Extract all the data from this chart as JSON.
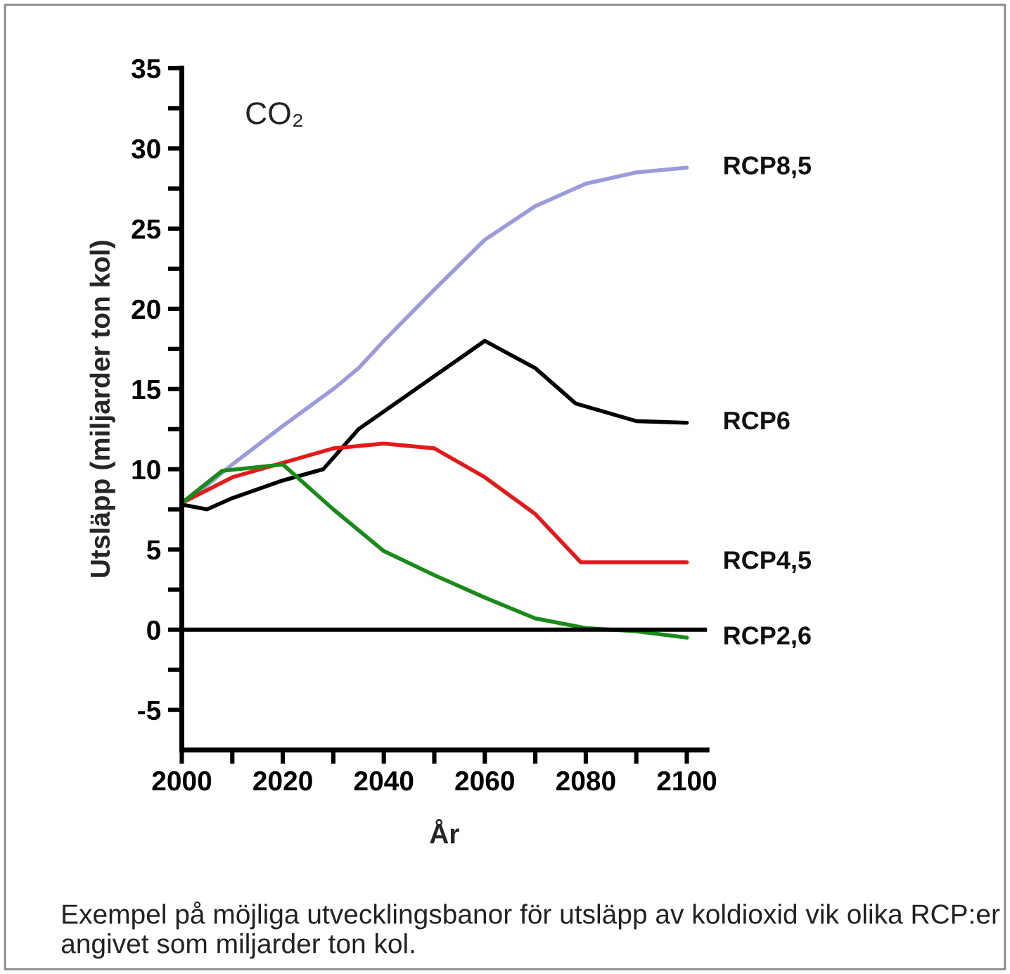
{
  "chart_data": {
    "type": "line",
    "xlabel": "År",
    "ylabel": "Utsläpp (miljarder ton kol)",
    "annotations": [
      "CO₂",
      "Exempel på möjliga utvecklingsbanor för utsläpp av koldioxid vik olika RCP:er angivet som miljarder ton kol."
    ],
    "series": [
      {
        "name": "RCP8,5",
        "color": "#9b9bdb",
        "x": [
          2000,
          2005,
          2010,
          2020,
          2030,
          2035,
          2040,
          2050,
          2060,
          2070,
          2080,
          2090,
          2100
        ],
        "values": [
          7.9,
          9,
          10.3,
          12.7,
          15,
          16.3,
          18,
          21.2,
          24.3,
          26.4,
          27.8,
          28.5,
          28.8
        ]
      },
      {
        "name": "RCP6",
        "color": "#000000",
        "x": [
          2000,
          2005,
          2010,
          2020,
          2028,
          2035,
          2040,
          2050,
          2060,
          2070,
          2078,
          2090,
          2100
        ],
        "values": [
          7.8,
          7.5,
          8.2,
          9.3,
          10,
          12.5,
          13.6,
          15.8,
          18,
          16.3,
          14.1,
          13,
          12.9
        ]
      },
      {
        "name": "RCP4,5",
        "color": "#e31a1c",
        "x": [
          2000,
          2010,
          2020,
          2030,
          2040,
          2050,
          2060,
          2070,
          2079,
          2100
        ],
        "values": [
          7.9,
          9.5,
          10.4,
          11.3,
          11.6,
          11.3,
          9.5,
          7.2,
          4.2,
          4.2
        ]
      },
      {
        "name": "RCP2,6",
        "color": "#1a8a1a",
        "x": [
          2000,
          2008,
          2020,
          2030,
          2040,
          2050,
          2060,
          2070,
          2080,
          2090,
          2100
        ],
        "values": [
          7.9,
          9.9,
          10.3,
          7.5,
          4.9,
          3.4,
          2,
          0.7,
          0.1,
          -0.1,
          -0.5
        ]
      }
    ],
    "xlim": [
      2000,
      2104
    ],
    "xticks": [
      2000,
      {
        "value": 2010,
        "label": null
      },
      2020,
      {
        "value": 2030,
        "label": null
      },
      2040,
      {
        "value": 2050,
        "label": null
      },
      2060,
      {
        "value": 2070,
        "label": null
      },
      2080,
      {
        "value": 2090,
        "label": null
      },
      2100
    ],
    "ylim": [
      -7.5,
      35
    ],
    "yticks": [
      {
        "value": -5,
        "label": "-5"
      },
      {
        "value": -2.5,
        "label": null
      },
      0,
      {
        "value": 2.5,
        "label": null
      },
      5,
      {
        "value": 7.5,
        "label": null
      },
      10,
      {
        "value": 12.5,
        "label": null
      },
      15,
      {
        "value": 17.5,
        "label": null
      },
      20,
      {
        "value": 22.5,
        "label": null
      },
      25,
      {
        "value": 27.5,
        "label": null
      },
      30,
      {
        "value": 32.5,
        "label": null
      },
      35
    ],
    "ref_lines": [
      {
        "axis": "y",
        "value": 0,
        "color": "#000000"
      }
    ],
    "grid": false,
    "legend": false,
    "line_style": "solid",
    "marker": "none"
  }
}
